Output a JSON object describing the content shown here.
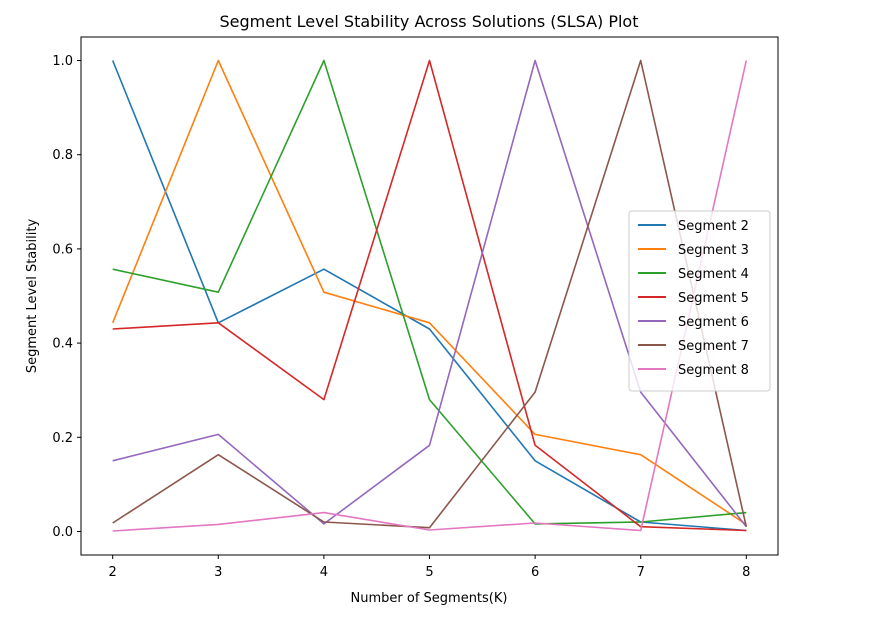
{
  "chart_data": {
    "type": "line",
    "title": "Segment Level Stability Across Solutions (SLSA) Plot",
    "xlabel": "Number of Segments(K)",
    "ylabel": "Segment Level Stability",
    "x": [
      2,
      3,
      4,
      5,
      6,
      7,
      8
    ],
    "xlim": [
      1.7,
      8.3
    ],
    "ylim": [
      -0.05,
      1.05
    ],
    "xticks": [
      "2",
      "3",
      "4",
      "5",
      "6",
      "7",
      "8"
    ],
    "yticks": [
      "0.0",
      "0.2",
      "0.4",
      "0.6",
      "0.8",
      "1.0"
    ],
    "grid": false,
    "legend_position": "center-right",
    "series": [
      {
        "name": "Segment 2",
        "color": "#1f77b4",
        "values": [
          1.0,
          0.443,
          0.557,
          0.43,
          0.15,
          0.02,
          0.002
        ]
      },
      {
        "name": "Segment 3",
        "color": "#ff7f0e",
        "values": [
          0.443,
          1.0,
          0.508,
          0.443,
          0.206,
          0.163,
          0.015
        ]
      },
      {
        "name": "Segment 4",
        "color": "#2ca02c",
        "values": [
          0.557,
          0.508,
          1.0,
          0.28,
          0.016,
          0.02,
          0.04
        ]
      },
      {
        "name": "Segment 5",
        "color": "#d62728",
        "values": [
          0.43,
          0.443,
          0.28,
          1.0,
          0.183,
          0.01,
          0.002
        ]
      },
      {
        "name": "Segment 6",
        "color": "#9467bd",
        "values": [
          0.15,
          0.206,
          0.016,
          0.183,
          1.0,
          0.296,
          0.01
        ]
      },
      {
        "name": "Segment 7",
        "color": "#8c564b",
        "values": [
          0.018,
          0.163,
          0.02,
          0.008,
          0.296,
          1.0,
          0.01
        ]
      },
      {
        "name": "Segment 8",
        "color": "#e377c2",
        "values": [
          0.001,
          0.015,
          0.04,
          0.003,
          0.018,
          0.002,
          1.0
        ]
      }
    ]
  }
}
